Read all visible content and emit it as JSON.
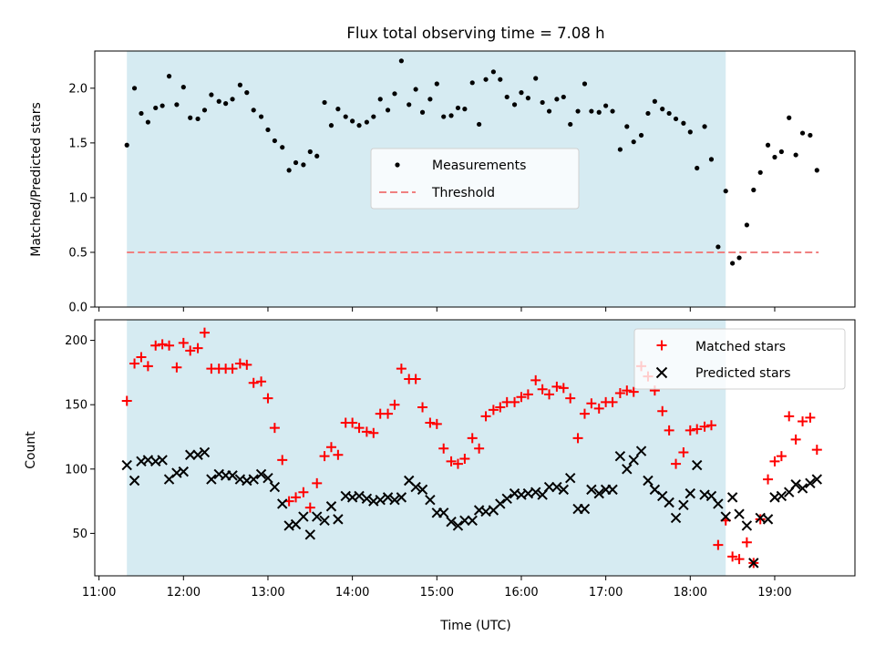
{
  "chart_data": [
    {
      "type": "scatter",
      "title": "Flux total observing time = 7.08 h",
      "xlabel": "",
      "ylabel": "Matched/Predicted stars",
      "x_unit": "UTC hours",
      "xlim": [
        10.95,
        19.95
      ],
      "ylim": [
        0.0,
        2.34
      ],
      "yticks": [
        "0.0",
        "0.5",
        "1.0",
        "1.5",
        "2.0"
      ],
      "ytick_values": [
        0.0,
        0.5,
        1.0,
        1.5,
        2.0
      ],
      "observing_window": [
        11.33,
        18.42
      ],
      "legend_position": "center",
      "legend": [
        "Measurements",
        "Threshold"
      ],
      "colors": {
        "measurements": "#000000",
        "threshold": "#f08080",
        "window": "#add8e6"
      },
      "threshold": {
        "name": "Threshold",
        "value": 0.5,
        "x_range": [
          11.33,
          19.52
        ]
      },
      "series": [
        {
          "name": "Measurements",
          "x": [
            11.33,
            11.42,
            11.5,
            11.58,
            11.67,
            11.75,
            11.83,
            11.92,
            12.0,
            12.08,
            12.17,
            12.25,
            12.33,
            12.42,
            12.5,
            12.58,
            12.67,
            12.75,
            12.83,
            12.92,
            13.0,
            13.08,
            13.17,
            13.25,
            13.33,
            13.42,
            13.5,
            13.58,
            13.67,
            13.75,
            13.83,
            13.92,
            14.0,
            14.08,
            14.17,
            14.25,
            14.33,
            14.42,
            14.5,
            14.58,
            14.67,
            14.75,
            14.83,
            14.92,
            15.0,
            15.08,
            15.17,
            15.25,
            15.33,
            15.42,
            15.5,
            15.58,
            15.67,
            15.75,
            15.83,
            15.92,
            16.0,
            16.08,
            16.17,
            16.25,
            16.33,
            16.42,
            16.5,
            16.58,
            16.67,
            16.75,
            16.83,
            16.92,
            17.0,
            17.08,
            17.17,
            17.25,
            17.33,
            17.42,
            17.5,
            17.58,
            17.67,
            17.75,
            17.83,
            17.92,
            18.0,
            18.08,
            18.17,
            18.25,
            18.33,
            18.42,
            18.5,
            18.58,
            18.67,
            18.75,
            18.83,
            18.92,
            19.0,
            19.08,
            19.17,
            19.25,
            19.33,
            19.42,
            19.5
          ],
          "y": [
            1.48,
            2.0,
            1.77,
            1.69,
            1.82,
            1.84,
            2.11,
            1.85,
            2.01,
            1.73,
            1.72,
            1.8,
            1.94,
            1.88,
            1.86,
            1.9,
            2.03,
            1.96,
            1.8,
            1.74,
            1.62,
            1.52,
            1.46,
            1.25,
            1.32,
            1.3,
            1.42,
            1.38,
            1.87,
            1.66,
            1.81,
            1.74,
            1.7,
            1.66,
            1.69,
            1.74,
            1.9,
            1.8,
            1.95,
            2.25,
            1.85,
            1.99,
            1.78,
            1.9,
            2.04,
            1.74,
            1.75,
            1.82,
            1.81,
            2.05,
            1.67,
            2.08,
            2.15,
            2.08,
            1.92,
            1.85,
            1.96,
            1.91,
            2.09,
            1.87,
            1.79,
            1.9,
            1.92,
            1.67,
            1.79,
            2.04,
            1.79,
            1.78,
            1.84,
            1.79,
            1.44,
            1.65,
            1.51,
            1.57,
            1.77,
            1.88,
            1.81,
            1.77,
            1.72,
            1.68,
            1.6,
            1.27,
            1.65,
            1.35,
            0.55,
            1.06,
            0.4,
            0.45,
            0.75,
            1.07,
            1.23,
            1.48,
            1.37,
            1.42,
            1.73,
            1.39,
            1.59,
            1.57,
            1.25
          ]
        }
      ]
    },
    {
      "type": "scatter",
      "title": "",
      "xlabel": "Time (UTC)",
      "ylabel": "Count",
      "x_unit": "UTC hours",
      "xlim": [
        10.95,
        19.95
      ],
      "ylim": [
        17,
        216
      ],
      "xticks": [
        "11:00",
        "12:00",
        "13:00",
        "14:00",
        "15:00",
        "16:00",
        "17:00",
        "18:00",
        "19:00"
      ],
      "xtick_values": [
        11,
        12,
        13,
        14,
        15,
        16,
        17,
        18,
        19
      ],
      "yticks": [
        "50",
        "100",
        "150",
        "200"
      ],
      "ytick_values": [
        50,
        100,
        150,
        200
      ],
      "observing_window": [
        11.33,
        18.42
      ],
      "legend_position": "top-right",
      "legend": [
        "Matched stars",
        "Predicted stars"
      ],
      "colors": {
        "matched": "#ff0000",
        "predicted": "#000000",
        "window": "#add8e6"
      },
      "series": [
        {
          "name": "Matched stars",
          "x": [
            11.33,
            11.42,
            11.5,
            11.58,
            11.67,
            11.75,
            11.83,
            11.92,
            12.0,
            12.08,
            12.17,
            12.25,
            12.33,
            12.42,
            12.5,
            12.58,
            12.67,
            12.75,
            12.83,
            12.92,
            13.0,
            13.08,
            13.17,
            13.25,
            13.33,
            13.42,
            13.5,
            13.58,
            13.67,
            13.75,
            13.83,
            13.92,
            14.0,
            14.08,
            14.17,
            14.25,
            14.33,
            14.42,
            14.5,
            14.58,
            14.67,
            14.75,
            14.83,
            14.92,
            15.0,
            15.08,
            15.17,
            15.25,
            15.33,
            15.42,
            15.5,
            15.58,
            15.67,
            15.75,
            15.83,
            15.92,
            16.0,
            16.08,
            16.17,
            16.25,
            16.33,
            16.42,
            16.5,
            16.58,
            16.67,
            16.75,
            16.83,
            16.92,
            17.0,
            17.08,
            17.17,
            17.25,
            17.33,
            17.42,
            17.5,
            17.58,
            17.67,
            17.75,
            17.83,
            17.92,
            18.0,
            18.08,
            18.17,
            18.25,
            18.33,
            18.42,
            18.5,
            18.58,
            18.67,
            18.75,
            18.83,
            18.92,
            19.0,
            19.08,
            19.17,
            19.25,
            19.33,
            19.42,
            19.5
          ],
          "y": [
            153,
            182,
            187,
            180,
            196,
            197,
            196,
            179,
            198,
            192,
            194,
            206,
            178,
            178,
            178,
            178,
            182,
            181,
            167,
            168,
            155,
            132,
            107,
            75,
            78,
            82,
            70,
            89,
            110,
            117,
            111,
            136,
            136,
            132,
            129,
            128,
            143,
            143,
            150,
            178,
            170,
            170,
            148,
            136,
            135,
            116,
            106,
            104,
            108,
            124,
            116,
            141,
            146,
            148,
            152,
            152,
            156,
            158,
            169,
            162,
            158,
            164,
            163,
            155,
            124,
            143,
            151,
            147,
            152,
            152,
            159,
            161,
            160,
            180,
            172,
            161,
            145,
            130,
            104,
            113,
            130,
            131,
            133,
            134,
            41,
            60,
            32,
            30,
            43,
            27,
            61,
            92,
            106,
            110,
            141,
            123,
            137,
            140,
            115
          ]
        },
        {
          "name": "Predicted stars",
          "x": [
            11.33,
            11.42,
            11.5,
            11.58,
            11.67,
            11.75,
            11.83,
            11.92,
            12.0,
            12.08,
            12.17,
            12.25,
            12.33,
            12.42,
            12.5,
            12.58,
            12.67,
            12.75,
            12.83,
            12.92,
            13.0,
            13.08,
            13.17,
            13.25,
            13.33,
            13.42,
            13.5,
            13.58,
            13.67,
            13.75,
            13.83,
            13.92,
            14.0,
            14.08,
            14.17,
            14.25,
            14.33,
            14.42,
            14.5,
            14.58,
            14.67,
            14.75,
            14.83,
            14.92,
            15.0,
            15.08,
            15.17,
            15.25,
            15.33,
            15.42,
            15.5,
            15.58,
            15.67,
            15.75,
            15.83,
            15.92,
            16.0,
            16.08,
            16.17,
            16.25,
            16.33,
            16.42,
            16.5,
            16.58,
            16.67,
            16.75,
            16.83,
            16.92,
            17.0,
            17.08,
            17.17,
            17.25,
            17.33,
            17.42,
            17.5,
            17.58,
            17.67,
            17.75,
            17.83,
            17.92,
            18.0,
            18.08,
            18.17,
            18.25,
            18.33,
            18.42,
            18.5,
            18.58,
            18.67,
            18.75,
            18.83,
            18.92,
            19.0,
            19.08,
            19.17,
            19.25,
            19.33,
            19.42,
            19.5
          ],
          "y": [
            103,
            91,
            106,
            107,
            106,
            107,
            92,
            97,
            98,
            111,
            111,
            113,
            92,
            96,
            95,
            95,
            92,
            91,
            92,
            96,
            93,
            86,
            73,
            56,
            57,
            63,
            49,
            63,
            60,
            71,
            61,
            79,
            78,
            79,
            77,
            75,
            76,
            78,
            76,
            78,
            91,
            86,
            84,
            76,
            66,
            66,
            59,
            56,
            60,
            60,
            68,
            67,
            68,
            73,
            77,
            81,
            80,
            81,
            82,
            80,
            86,
            86,
            84,
            93,
            69,
            69,
            84,
            81,
            84,
            84,
            110,
            100,
            107,
            114,
            91,
            84,
            79,
            74,
            62,
            72,
            81,
            103,
            80,
            79,
            73,
            63,
            78,
            65,
            56,
            27,
            62,
            61,
            78,
            79,
            82,
            88,
            85,
            89,
            92
          ]
        }
      ]
    }
  ]
}
